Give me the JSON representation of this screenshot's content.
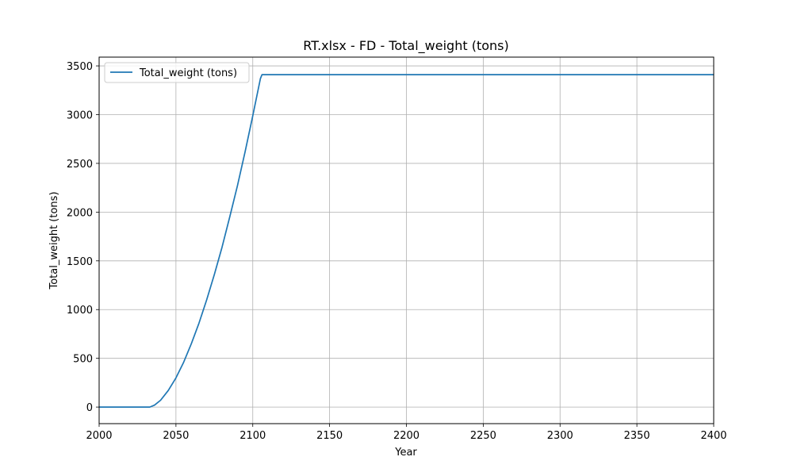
{
  "chart_data": {
    "type": "line",
    "title": "RT.xlsx - FD - Total_weight (tons)",
    "xlabel": "Year",
    "ylabel": "Total_weight (tons)",
    "xlim": [
      2000,
      2400
    ],
    "ylim": [
      -170,
      3590
    ],
    "xticks": [
      2000,
      2050,
      2100,
      2150,
      2200,
      2250,
      2300,
      2350,
      2400
    ],
    "yticks": [
      0,
      500,
      1000,
      1500,
      2000,
      2500,
      3000,
      3500
    ],
    "grid": true,
    "legend_position": "upper-left",
    "series": [
      {
        "name": "Total_weight (tons)",
        "color": "#1f77b4",
        "x": [
          2000,
          2010,
          2020,
          2030,
          2033,
          2036,
          2040,
          2045,
          2050,
          2055,
          2060,
          2065,
          2070,
          2075,
          2080,
          2085,
          2090,
          2095,
          2100,
          2105,
          2106,
          2150,
          2200,
          2250,
          2300,
          2350,
          2400
        ],
        "y": [
          0,
          0,
          0,
          0,
          0,
          20,
          70,
          170,
          300,
          460,
          650,
          860,
          1100,
          1360,
          1640,
          1950,
          2270,
          2620,
          2990,
          3370,
          3410,
          3410,
          3410,
          3410,
          3410,
          3410,
          3410
        ]
      }
    ]
  }
}
